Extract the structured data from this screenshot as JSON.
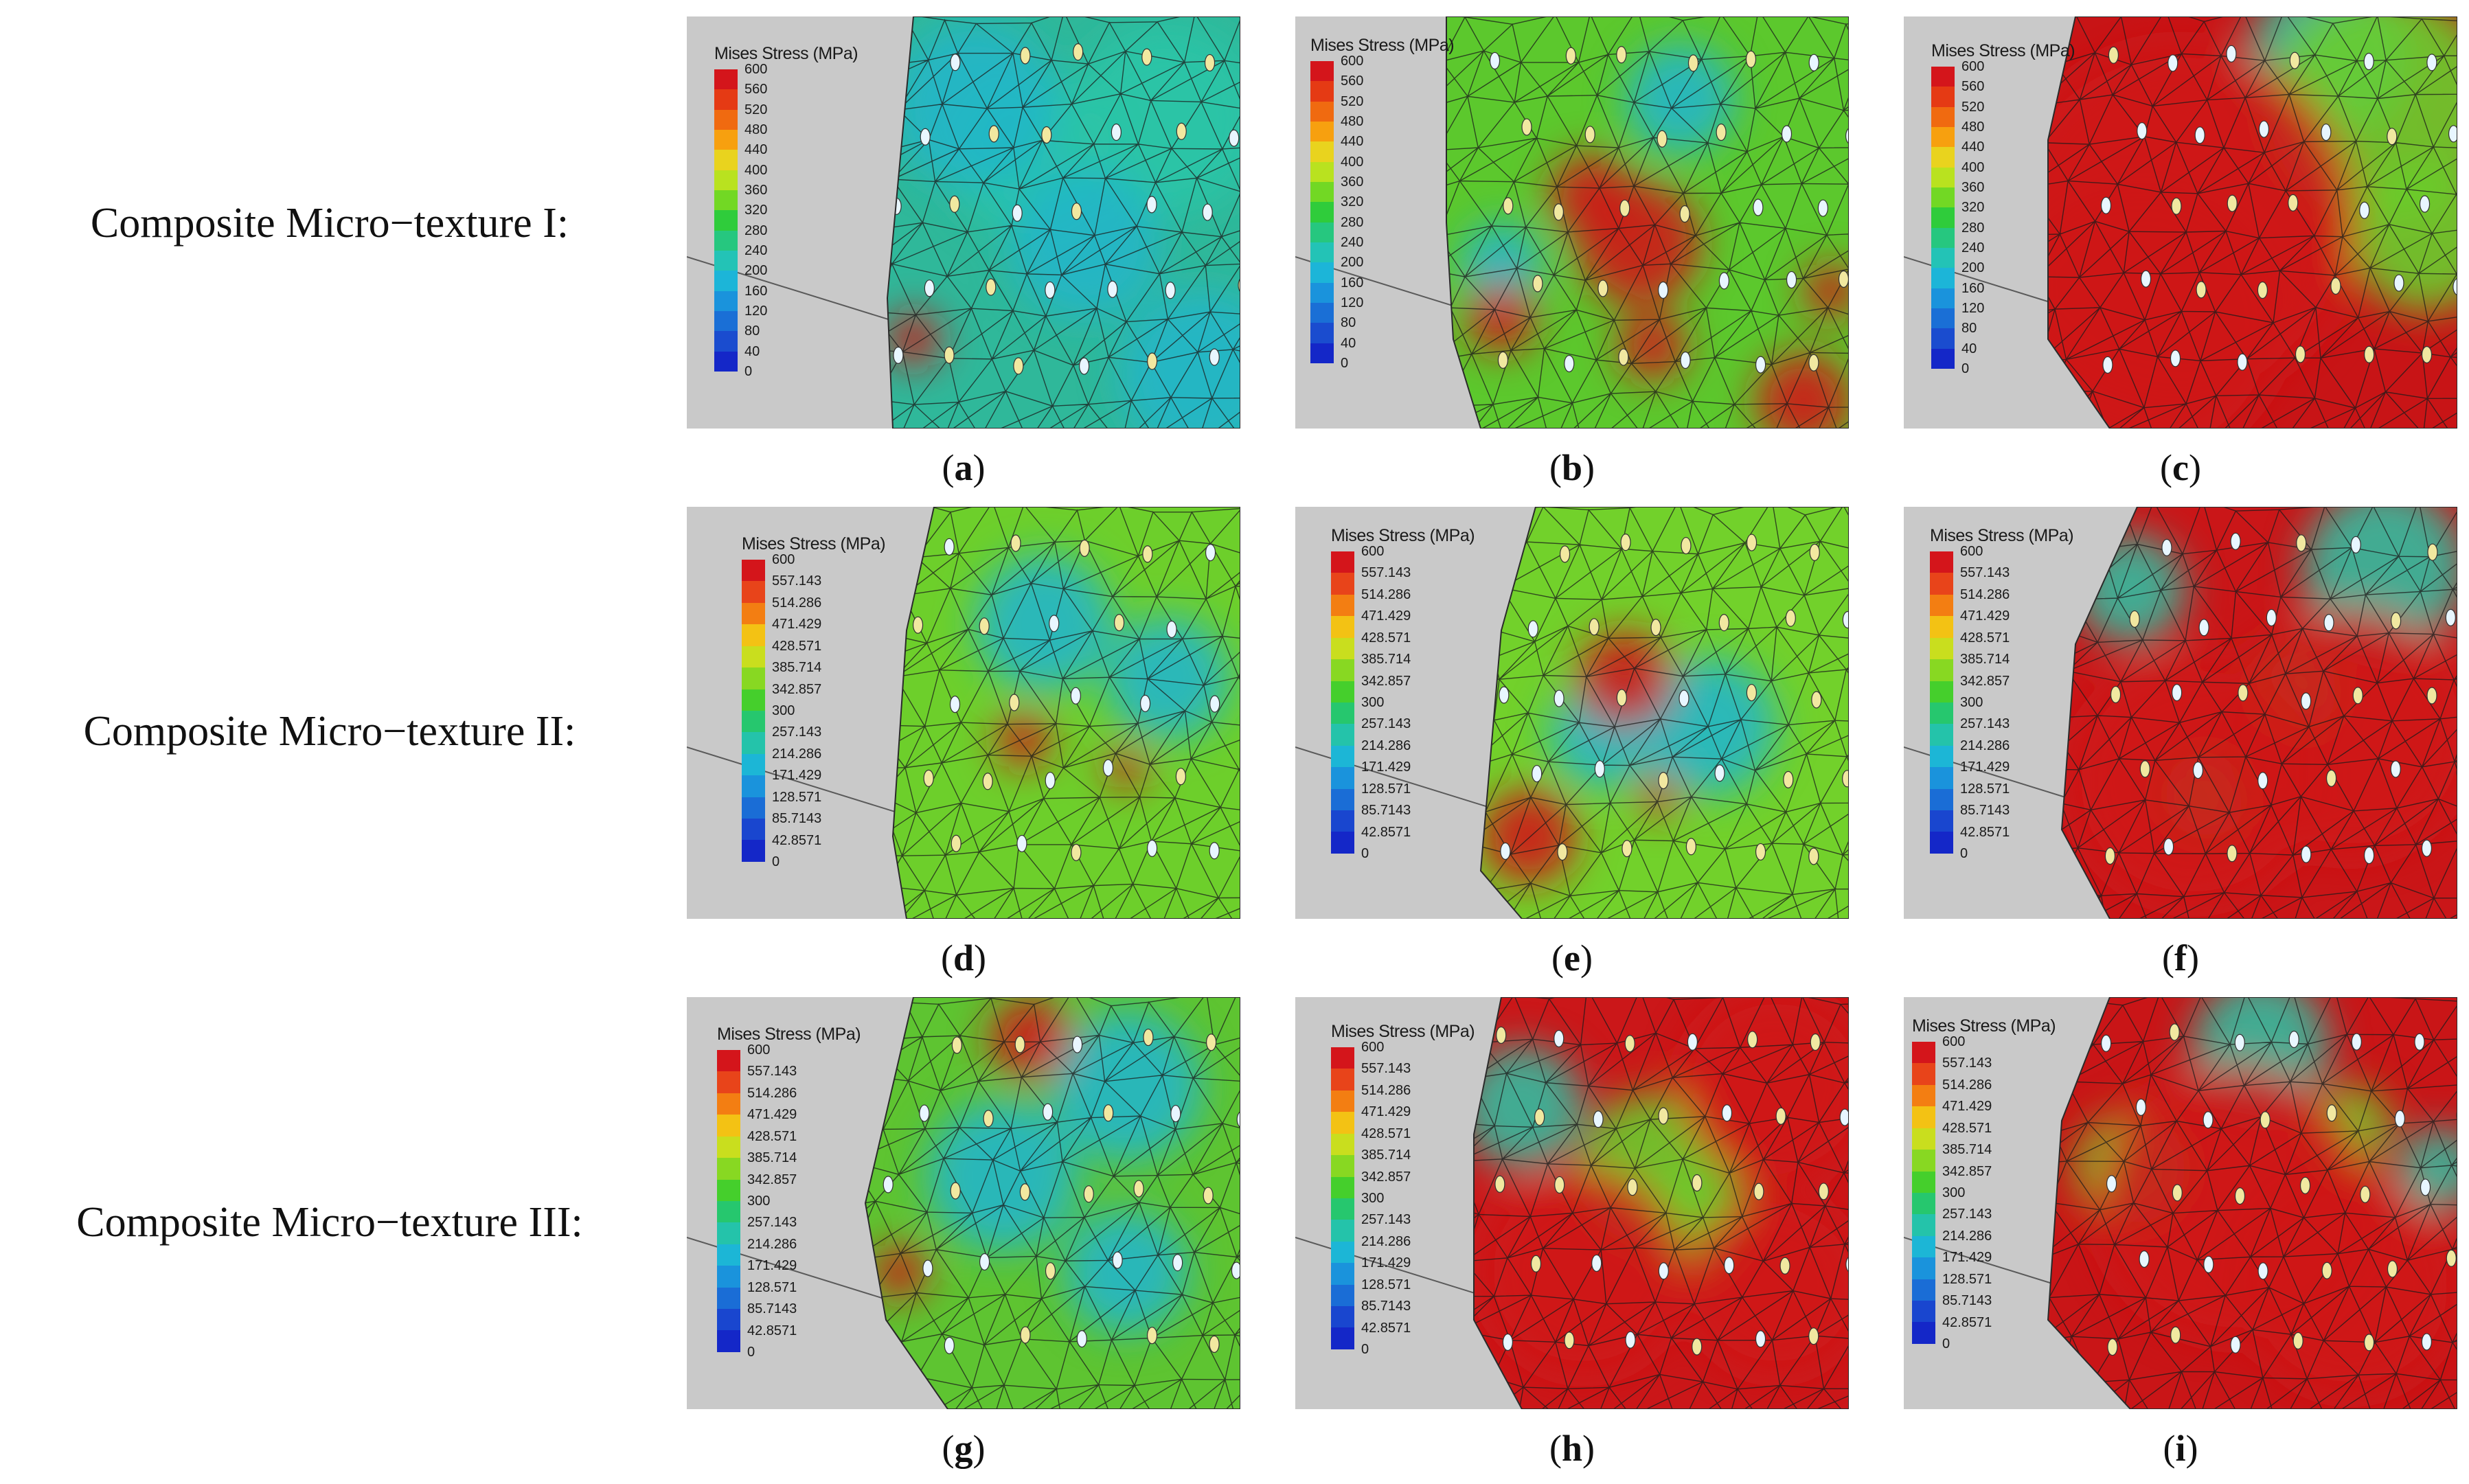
{
  "row_labels": [
    "Composite Micro−texture I:",
    "Composite Micro−texture II:",
    "Composite Micro−texture III:"
  ],
  "legend": {
    "title": "Mises Stress (MPa)",
    "ticks_a": [
      "600",
      "560",
      "520",
      "480",
      "440",
      "400",
      "360",
      "320",
      "280",
      "240",
      "200",
      "160",
      "120",
      "80",
      "40",
      "0"
    ],
    "ticks_b": [
      "600",
      "557.143",
      "514.286",
      "471.429",
      "428.571",
      "385.714",
      "342.857",
      "300",
      "257.143",
      "214.286",
      "171.429",
      "128.571",
      "85.7143",
      "42.8571",
      "0"
    ],
    "colors_a": [
      "#d4151b",
      "#e53a14",
      "#f06a10",
      "#f7a00f",
      "#e9d31e",
      "#b9e21f",
      "#72d824",
      "#2fcc3b",
      "#26c77f",
      "#23c3b6",
      "#1cb5d8",
      "#1a93dc",
      "#1a6fd6",
      "#1a4ccf",
      "#1427c8"
    ],
    "colors_b": [
      "#d4151b",
      "#e8441a",
      "#f37e12",
      "#f3c214",
      "#c9de1e",
      "#88d822",
      "#45cf2c",
      "#26c76e",
      "#24c3aa",
      "#1cb6d6",
      "#1a93dc",
      "#1a6dd6",
      "#1946cf",
      "#1427c8"
    ]
  },
  "panels": [
    {
      "id": "a",
      "caption": "a",
      "scale": "a"
    },
    {
      "id": "b",
      "caption": "b",
      "scale": "a"
    },
    {
      "id": "c",
      "caption": "c",
      "scale": "a"
    },
    {
      "id": "d",
      "caption": "d",
      "scale": "b"
    },
    {
      "id": "e",
      "caption": "e",
      "scale": "b"
    },
    {
      "id": "f",
      "caption": "f",
      "scale": "b"
    },
    {
      "id": "g",
      "caption": "g",
      "scale": "b"
    },
    {
      "id": "h",
      "caption": "h",
      "scale": "b"
    },
    {
      "id": "i",
      "caption": "i",
      "scale": "b"
    }
  ]
}
